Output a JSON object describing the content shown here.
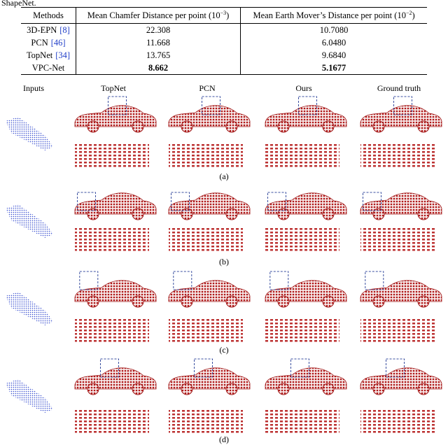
{
  "caption_fragment": "ShapeNet.",
  "table": {
    "header": [
      {
        "text": "Methods"
      },
      {
        "text": "Mean Chamfer Distance per point (10",
        "exponent": "−3",
        "close": ")"
      },
      {
        "text": "Mean Earth Mover’s Distance per point (10",
        "exponent": "−2",
        "close": ")"
      }
    ],
    "rows": [
      {
        "method": "3D-EPN",
        "cite": "[8]",
        "values": [
          "22.308",
          "10.7080"
        ]
      },
      {
        "method": "PCN",
        "cite": "[46]",
        "values": [
          "11.668",
          "6.0480"
        ]
      },
      {
        "method": "TopNet",
        "cite": "[34]",
        "values": [
          "13.765",
          "9.6840"
        ]
      },
      {
        "method": "VPC-Net",
        "values": [
          "8.662",
          "5.1677"
        ],
        "bold": true
      }
    ]
  },
  "figure": {
    "columns": [
      "Inputs",
      "TopNet",
      "PCN",
      "Ours",
      "Ground truth"
    ],
    "panels": [
      "(a)",
      "(b)",
      "(c)",
      "(d)"
    ]
  }
}
